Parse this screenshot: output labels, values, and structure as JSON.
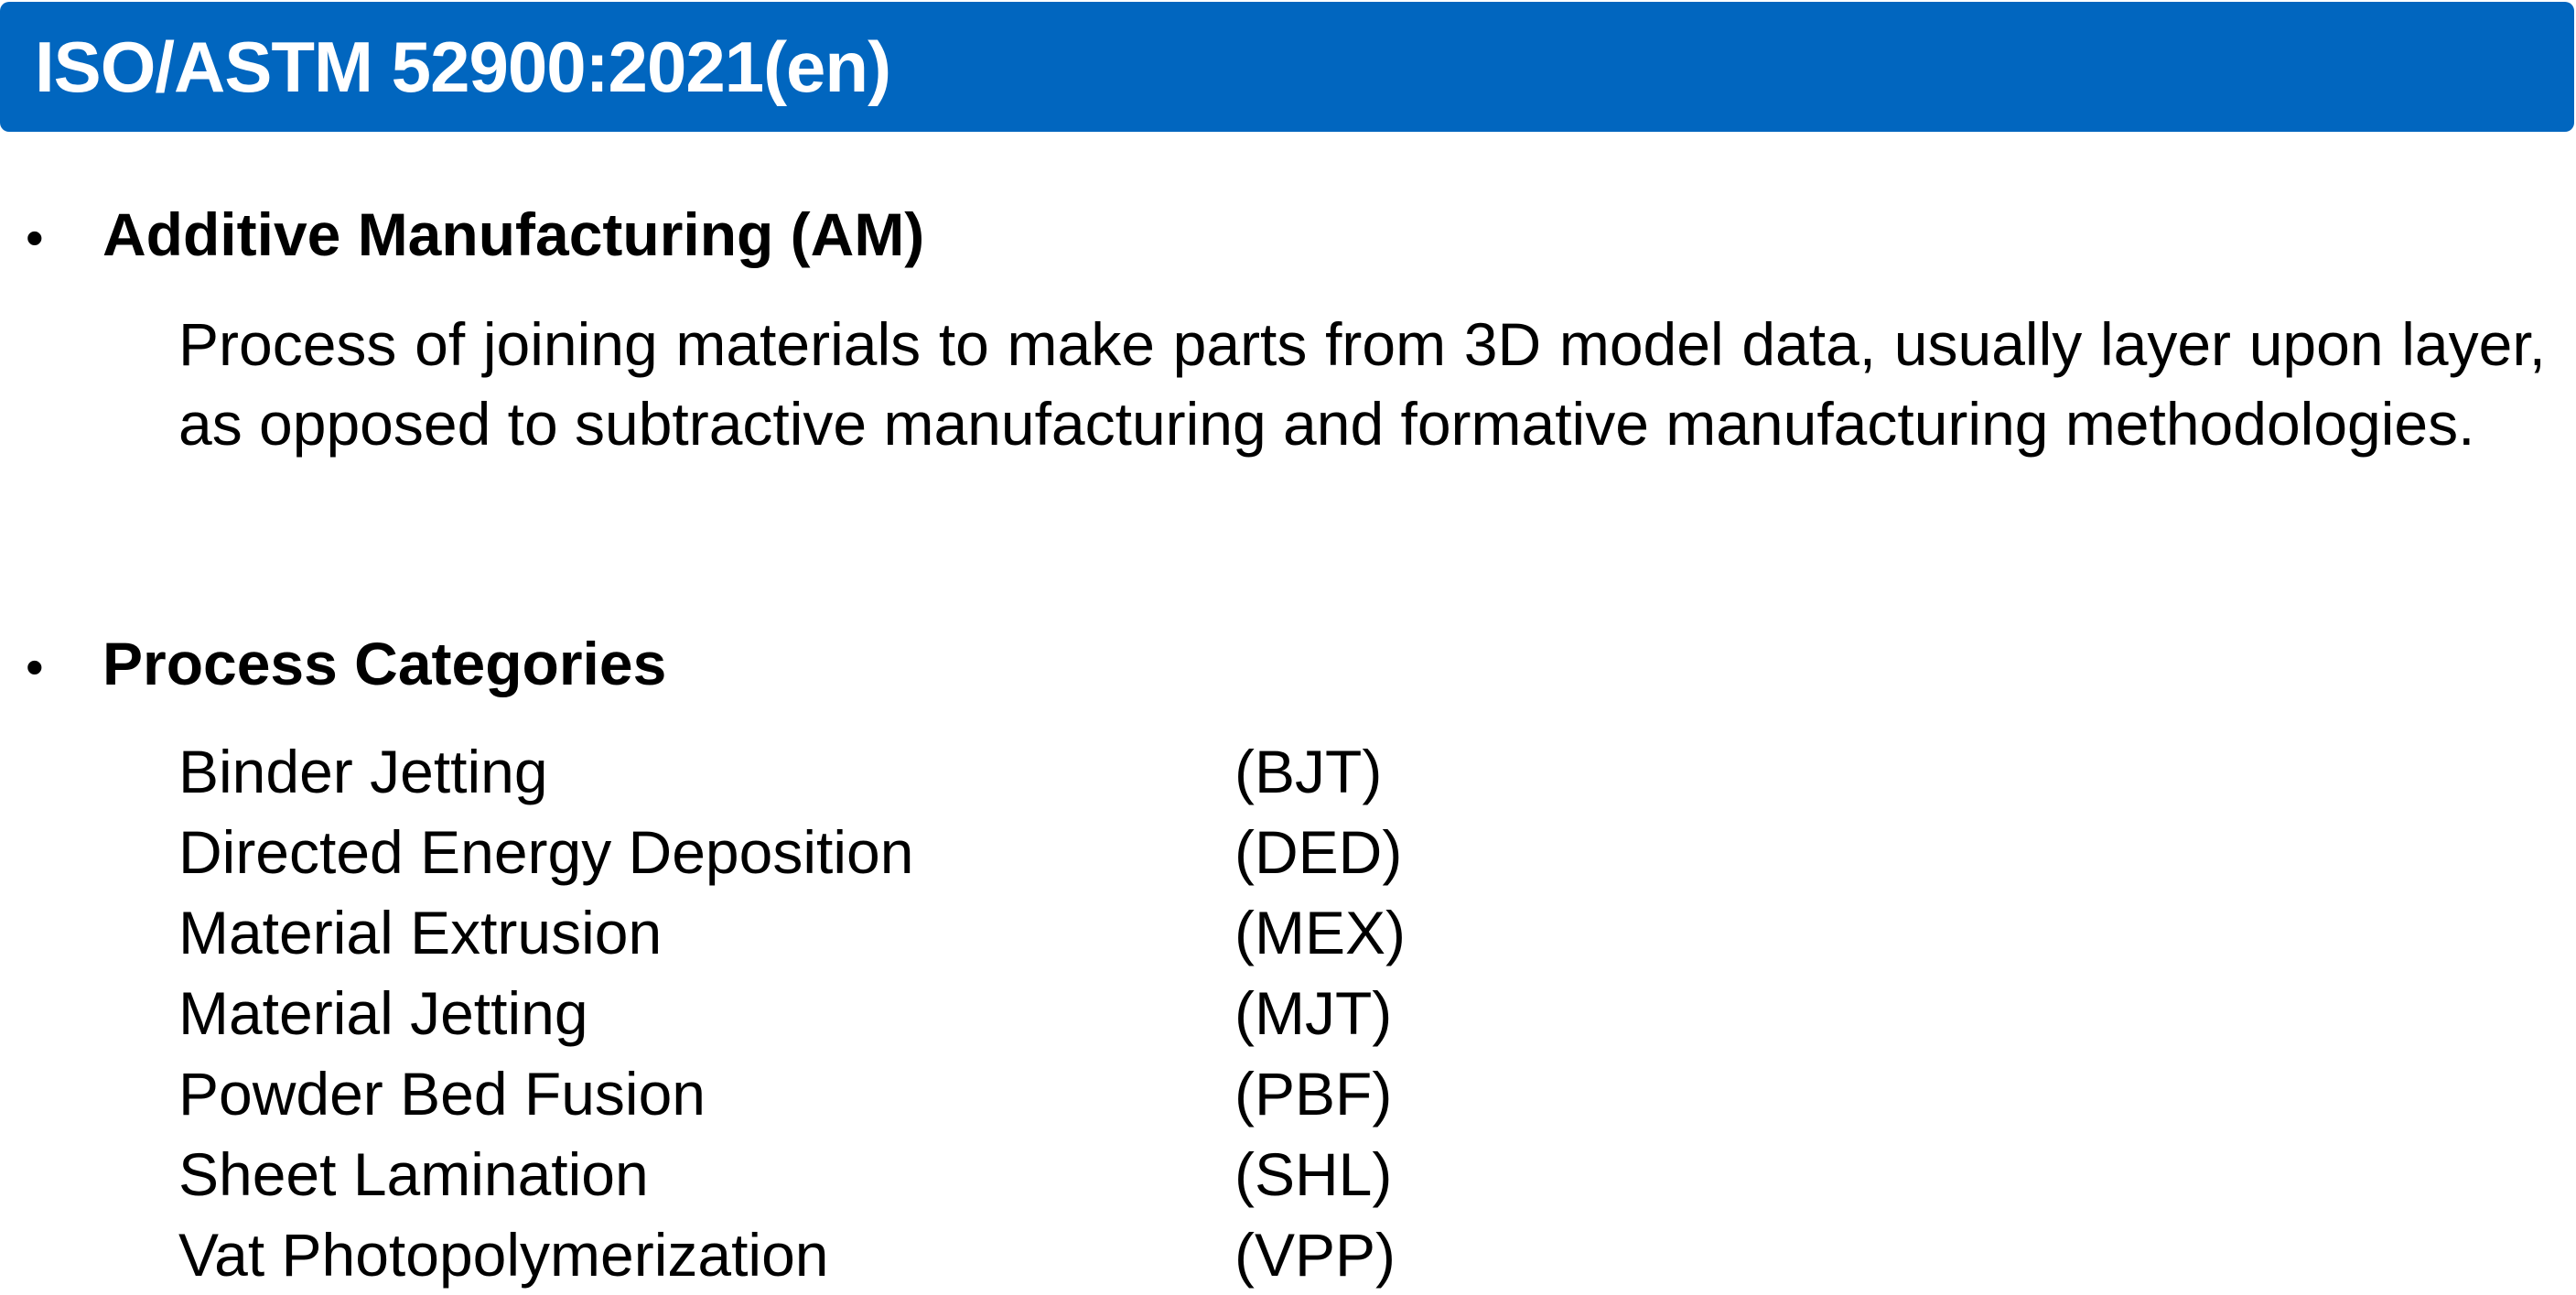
{
  "header": {
    "title": "ISO/ASTM 52900:2021(en)",
    "background_color": "#0166BF",
    "text_color": "#FFFFFF"
  },
  "sections": [
    {
      "heading": "Additive Manufacturing (AM)",
      "definition": "Process of joining materials to make parts from 3D model data, usually layer upon layer, as opposed to subtractive manufacturing and formative manufacturing methodologies."
    },
    {
      "heading": "Process Categories",
      "categories": [
        {
          "name": "Binder Jetting",
          "abbr": "(BJT)"
        },
        {
          "name": "Directed Energy Deposition",
          "abbr": "(DED)"
        },
        {
          "name": "Material Extrusion",
          "abbr": "(MEX)"
        },
        {
          "name": "Material Jetting",
          "abbr": "(MJT)"
        },
        {
          "name": "Powder Bed Fusion",
          "abbr": "(PBF)"
        },
        {
          "name": "Sheet Lamination",
          "abbr": "(SHL)"
        },
        {
          "name": "Vat Photopolymerization",
          "abbr": "(VPP)"
        }
      ]
    }
  ],
  "bullet_symbol": "•"
}
